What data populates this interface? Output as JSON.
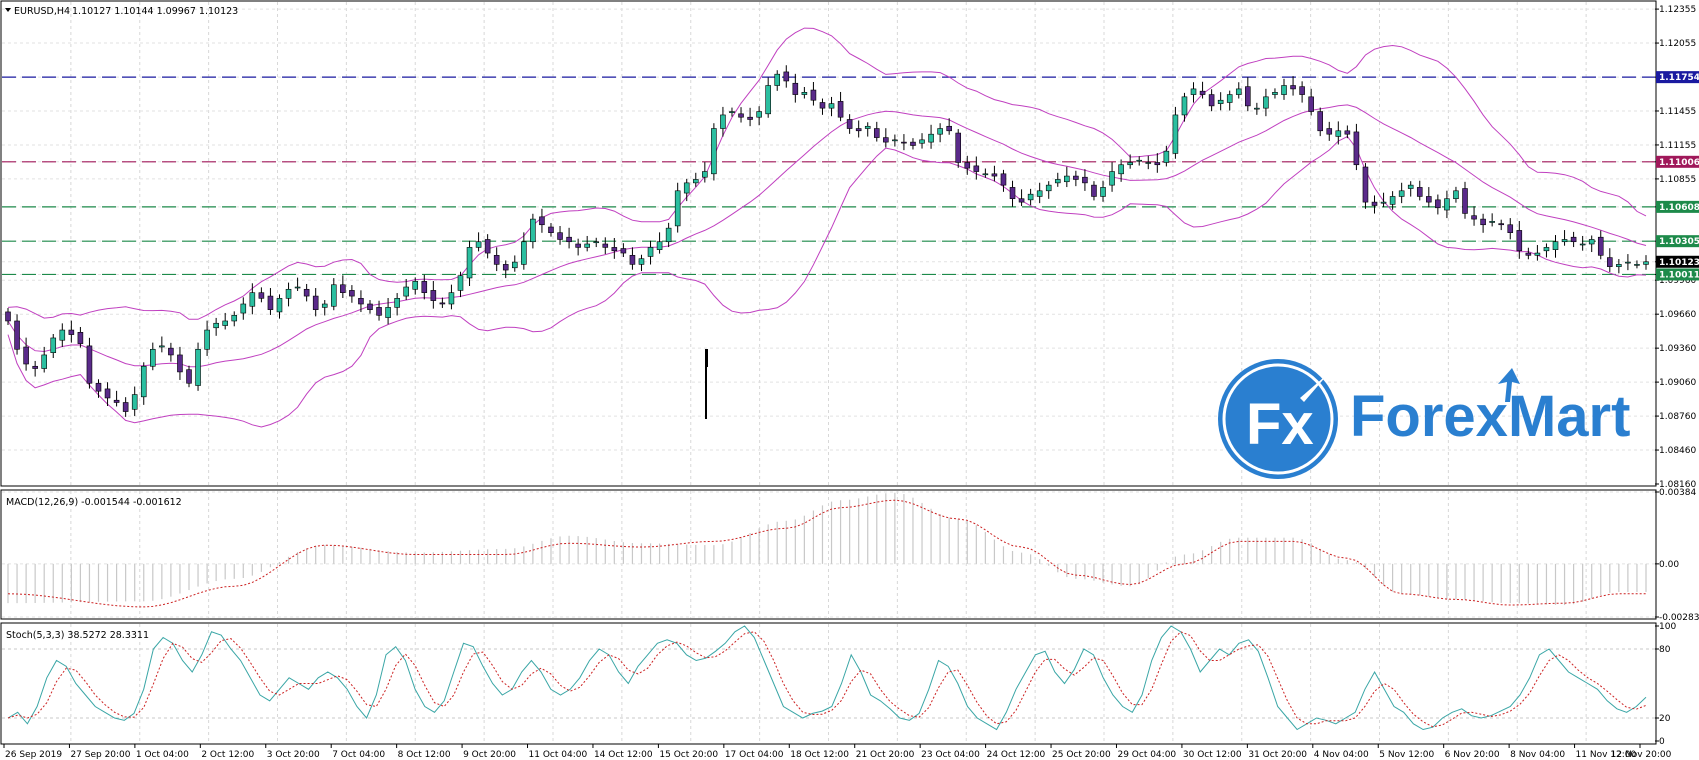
{
  "main_panel": {
    "symbol_header": "EURUSD,H4",
    "ohlc_header": "1.10127 1.10144 1.09967 1.10123"
  },
  "price_axis_labels": [
    "1.12355",
    "1.12055",
    "1.11754",
    "1.11455",
    "1.11155",
    "1.11006",
    "1.10855",
    "1.10608",
    "1.10305",
    "1.10123",
    "1.10011",
    "1.09960",
    "1.09660",
    "1.09360",
    "1.09060",
    "1.08760",
    "1.08460",
    "1.08160"
  ],
  "levels": [
    {
      "price": 1.11754,
      "label": "1.11754",
      "color": "#1a1aa0"
    },
    {
      "price": 1.11006,
      "label": "1.11006",
      "color": "#a0185a"
    },
    {
      "price": 1.10608,
      "label": "1.10608",
      "color": "#1d8a4a"
    },
    {
      "price": 1.10305,
      "label": "1.10305",
      "color": "#1d8a4a"
    },
    {
      "price": 1.10011,
      "label": "1.10011",
      "color": "#1d8a4a"
    }
  ],
  "current_price": {
    "price": 1.10123,
    "label": "1.10123",
    "color": "#000000"
  },
  "macd_panel": {
    "header": "MACD(12,26,9) -0.001544 -0.001612",
    "axis_labels": [
      "0.00384",
      "0.00",
      "-0.002839"
    ]
  },
  "stoch_panel": {
    "header": "Stoch(5,3,3) 38.5272 28.3311",
    "axis_labels": [
      "100",
      "80",
      "20",
      "0"
    ]
  },
  "time_axis_labels": [
    "26 Sep 2019",
    "27 Sep 20:00",
    "1 Oct 04:00",
    "2 Oct 12:00",
    "3 Oct 20:00",
    "7 Oct 04:00",
    "8 Oct 12:00",
    "9 Oct 20:00",
    "11 Oct 04:00",
    "14 Oct 12:00",
    "15 Oct 20:00",
    "17 Oct 04:00",
    "18 Oct 12:00",
    "21 Oct 20:00",
    "23 Oct 04:00",
    "24 Oct 12:00",
    "25 Oct 20:00",
    "29 Oct 04:00",
    "30 Oct 12:00",
    "31 Oct 20:00",
    "4 Nov 04:00",
    "5 Nov 12:00",
    "6 Nov 20:00",
    "8 Nov 04:00",
    "11 Nov 12:00",
    "12 Nov 20:00"
  ],
  "logo": {
    "text": "ForexMart",
    "icon": "fx-logo-icon"
  },
  "colors": {
    "bull": "#2bbfa0",
    "bear": "#5a2a8a",
    "band": "#c040c0",
    "stoch_main": "#3aa6a6",
    "stoch_signal": "#cc2222",
    "macd_signal": "#cc2222",
    "macd_hist": "#c8c8c8"
  },
  "chart_data": [
    {
      "type": "candlestick",
      "title": "EURUSD,H4",
      "ylim": [
        1.0816,
        1.124
      ],
      "indicator": "Bollinger Bands",
      "close": [
        1.096,
        1.0935,
        1.0922,
        1.0918,
        1.093,
        1.0945,
        1.0952,
        1.0948,
        1.094,
        1.0905,
        1.0898,
        1.0892,
        1.0888,
        1.088,
        1.0895,
        1.092,
        1.0935,
        1.0938,
        1.093,
        1.0915,
        1.0905,
        1.0935,
        1.0952,
        1.0958,
        1.096,
        1.0965,
        1.0975,
        1.0985,
        1.098,
        1.097,
        1.098,
        1.0988,
        1.099,
        1.0982,
        1.097,
        1.0975,
        1.0992,
        1.0985,
        1.0982,
        1.0975,
        1.097,
        1.0965,
        1.0972,
        1.098,
        1.099,
        1.0995,
        1.0985,
        1.0978,
        1.0975,
        1.0985,
        1.1,
        1.1025,
        1.103,
        1.102,
        1.101,
        1.1005,
        1.1012,
        1.103,
        1.105,
        1.1045,
        1.1038,
        1.1032,
        1.103,
        1.1025,
        1.1028,
        1.103,
        1.1025,
        1.1022,
        1.102,
        1.101,
        1.1015,
        1.1025,
        1.103,
        1.1042,
        1.1075,
        1.1082,
        1.1085,
        1.1092,
        1.113,
        1.1142,
        1.1145,
        1.114,
        1.1138,
        1.1145,
        1.1168,
        1.1178,
        1.1172,
        1.116,
        1.1162,
        1.1155,
        1.1148,
        1.1152,
        1.114,
        1.113,
        1.1128,
        1.1132,
        1.1122,
        1.1118,
        1.112,
        1.1118,
        1.1115,
        1.112,
        1.1125,
        1.113,
        1.1128,
        1.11,
        1.1095,
        1.1092,
        1.109,
        1.1088,
        1.108,
        1.1068,
        1.1065,
        1.1072,
        1.1075,
        1.108,
        1.1085,
        1.1088,
        1.1085,
        1.1082,
        1.107,
        1.1078,
        1.1092,
        1.1098,
        1.11,
        1.1102,
        1.11,
        1.1098,
        1.111,
        1.1142,
        1.1158,
        1.1165,
        1.116,
        1.115,
        1.1155,
        1.116,
        1.1165,
        1.115,
        1.1148,
        1.1158,
        1.1162,
        1.1168,
        1.1165,
        1.116,
        1.1145,
        1.1128,
        1.1125,
        1.1128,
        1.1125,
        1.1098,
        1.1065,
        1.1062,
        1.1065,
        1.107,
        1.1075,
        1.108,
        1.107,
        1.1065,
        1.106,
        1.1068,
        1.1075,
        1.1055,
        1.105,
        1.1045,
        1.1048,
        1.1045,
        1.1038,
        1.1022,
        1.1018,
        1.102,
        1.1025,
        1.103,
        1.1032,
        1.103,
        1.1028,
        1.1032,
        1.1018,
        1.1008,
        1.101,
        1.1012,
        1.101,
        1.10123
      ]
    },
    {
      "type": "bar",
      "title": "MACD(12,26,9) -0.001544 -0.001612",
      "ylim": [
        -0.002839,
        0.00384
      ],
      "keyframes_main": [
        [
          0,
          -0.0021
        ],
        [
          15,
          -0.002
        ],
        [
          25,
          -0.0008
        ],
        [
          35,
          0.001
        ],
        [
          45,
          0.0006
        ],
        [
          55,
          0.0008
        ],
        [
          62,
          0.0015
        ],
        [
          70,
          0.0011
        ],
        [
          78,
          0.001
        ],
        [
          86,
          0.0023
        ],
        [
          92,
          0.0034
        ],
        [
          98,
          0.0038
        ],
        [
          105,
          0.0024
        ],
        [
          112,
          0.0006
        ],
        [
          118,
          -0.0008
        ],
        [
          124,
          -0.0012
        ],
        [
          130,
          0.0005
        ],
        [
          136,
          0.0014
        ],
        [
          142,
          0.0014
        ],
        [
          148,
          0.0002
        ],
        [
          154,
          -0.0016
        ],
        [
          160,
          -0.0019
        ],
        [
          166,
          -0.0021
        ],
        [
          172,
          -0.0022
        ],
        [
          178,
          -0.0015
        ]
      ],
      "keyframes_signal": [
        [
          0,
          -0.0016
        ],
        [
          15,
          -0.0023
        ],
        [
          25,
          -0.0012
        ],
        [
          35,
          0.001
        ],
        [
          45,
          0.0005
        ],
        [
          55,
          0.0005
        ],
        [
          62,
          0.0011
        ],
        [
          70,
          0.0009
        ],
        [
          78,
          0.0012
        ],
        [
          86,
          0.0019
        ],
        [
          92,
          0.003
        ],
        [
          98,
          0.0034
        ],
        [
          105,
          0.0024
        ],
        [
          112,
          0.0009
        ],
        [
          118,
          -0.0006
        ],
        [
          124,
          -0.0011
        ],
        [
          130,
          0.0
        ],
        [
          136,
          0.0012
        ],
        [
          142,
          0.0012
        ],
        [
          148,
          0.0003
        ],
        [
          154,
          -0.0016
        ],
        [
          160,
          -0.0019
        ],
        [
          166,
          -0.0022
        ],
        [
          172,
          -0.0021
        ],
        [
          178,
          -0.0016
        ]
      ]
    },
    {
      "type": "line",
      "title": "Stoch(5,3,3) 38.5272 28.3311",
      "ylim": [
        0,
        100
      ],
      "main": [
        20,
        25,
        15,
        30,
        55,
        70,
        65,
        50,
        40,
        30,
        25,
        20,
        18,
        24,
        45,
        80,
        90,
        85,
        70,
        60,
        75,
        95,
        92,
        80,
        70,
        55,
        40,
        35,
        45,
        55,
        50,
        45,
        55,
        60,
        55,
        45,
        30,
        20,
        40,
        75,
        82,
        70,
        45,
        30,
        25,
        35,
        60,
        85,
        82,
        65,
        50,
        40,
        45,
        60,
        70,
        60,
        45,
        40,
        45,
        55,
        70,
        80,
        75,
        60,
        50,
        65,
        75,
        85,
        88,
        85,
        75,
        70,
        72,
        78,
        85,
        95,
        100,
        90,
        70,
        50,
        30,
        25,
        20,
        24,
        26,
        30,
        50,
        75,
        60,
        40,
        35,
        28,
        20,
        18,
        24,
        45,
        70,
        65,
        50,
        30,
        20,
        15,
        10,
        25,
        45,
        60,
        75,
        78,
        60,
        50,
        62,
        80,
        75,
        55,
        40,
        30,
        25,
        40,
        70,
        90,
        100,
        95,
        80,
        60,
        70,
        80,
        75,
        85,
        88,
        78,
        55,
        30,
        20,
        10,
        15,
        20,
        18,
        15,
        20,
        25,
        45,
        60,
        45,
        30,
        25,
        15,
        10,
        12,
        20,
        25,
        28,
        22,
        20,
        22,
        26,
        30,
        40,
        55,
        75,
        80,
        70,
        60,
        55,
        50,
        45,
        35,
        28,
        25,
        30,
        38
      ]
    }
  ]
}
